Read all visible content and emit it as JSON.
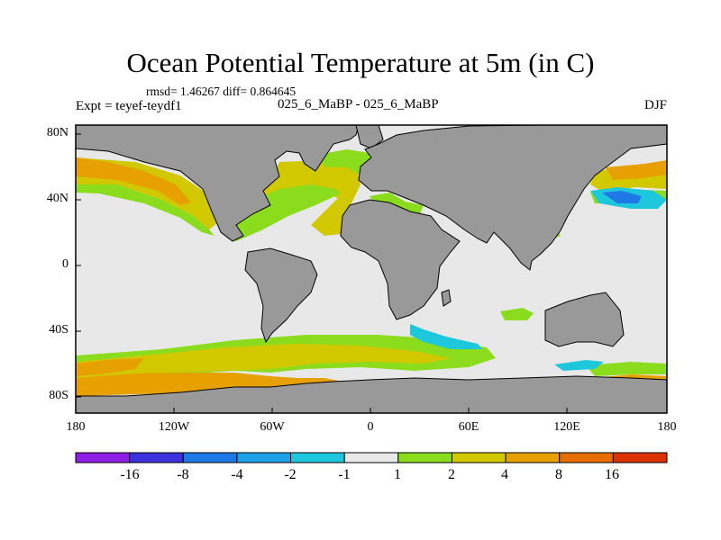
{
  "title": "Ocean Potential Temperature at 5m (in C)",
  "stats": "rmsd= 1.46267 diff= 0.864645",
  "experiment": "Expt = teyef-teydf1",
  "runs": "025_6_MaBP - 025_6_MaBP",
  "season": "DJF",
  "lat_labels": [
    "80N",
    "40N",
    "0",
    "40S",
    "80S"
  ],
  "lon_labels": [
    "180",
    "120W",
    "60W",
    "0",
    "60E",
    "120E",
    "180"
  ],
  "colorbar": {
    "labels": [
      "-16",
      "-8",
      "-4",
      "-2",
      "-1",
      "1",
      "2",
      "4",
      "8",
      "16"
    ],
    "colors": [
      "#8c1ee6",
      "#3c32dc",
      "#1e78e6",
      "#1ea0e6",
      "#1ec8dc",
      "#e8e8e8",
      "#8cdc1e",
      "#d2c800",
      "#e6a000",
      "#e66e00",
      "#dc3200"
    ]
  },
  "colors": {
    "land": "#999999",
    "ocean_neutral": "#e8e8e8",
    "border": "#000000"
  }
}
